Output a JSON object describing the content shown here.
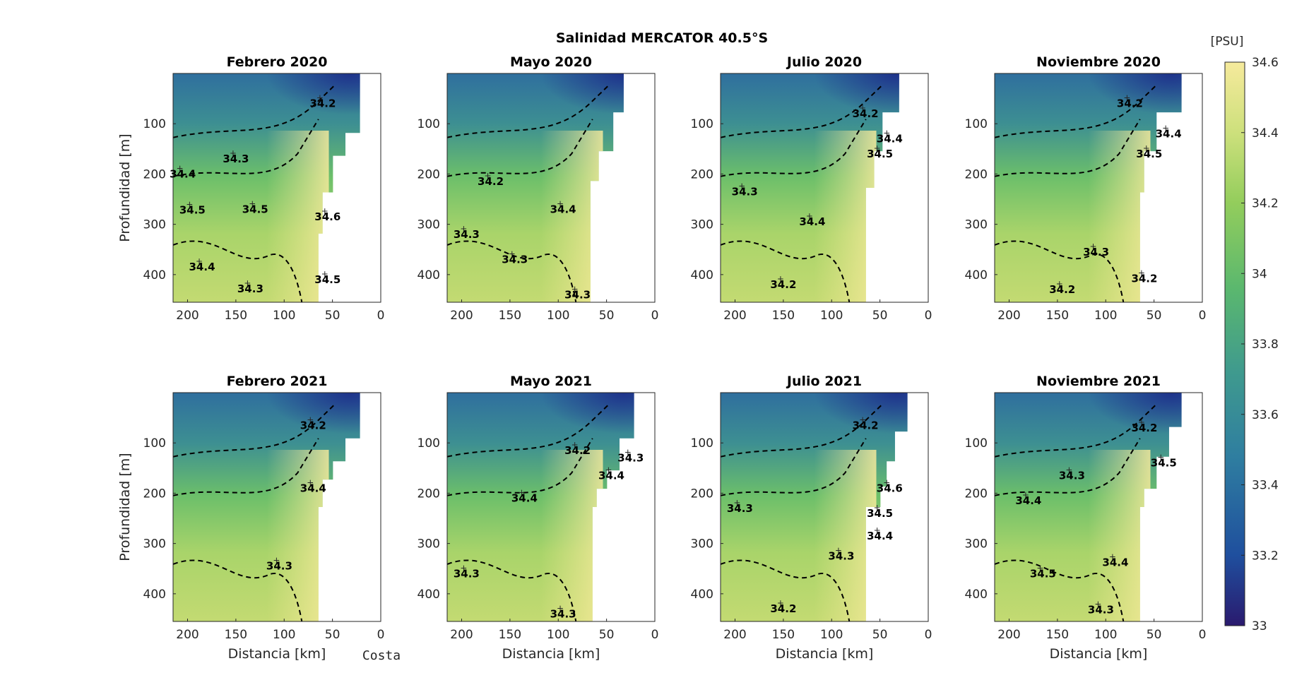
{
  "figure": {
    "suptitle": "Salinidad MERCATOR 40.5°S",
    "colorbar_unit": "[PSU]",
    "costa_label": "Costa"
  },
  "chart_data": {
    "type": "heatmap",
    "title": "Salinidad MERCATOR 40.5°S",
    "xlabel": "Distancia [km]",
    "ylabel": "Profundidad [m]",
    "xlim": [
      215,
      0
    ],
    "ylim": [
      455,
      0
    ],
    "x_ticks": [
      200,
      150,
      100,
      50,
      0
    ],
    "y_ticks": [
      100,
      200,
      300,
      400
    ],
    "colorbar": {
      "label": "[PSU]",
      "range": [
        33,
        34.6
      ],
      "ticks": [
        33,
        33.2,
        33.4,
        33.6,
        33.8,
        34,
        34.2,
        34.4,
        34.6
      ],
      "colors": [
        "#2a1a6e",
        "#1f4f9e",
        "#2f7ea0",
        "#3f9a8e",
        "#5bb86e",
        "#93cd5c",
        "#cde07c",
        "#f6ea9c"
      ]
    },
    "contour_style": "dashed black",
    "panels": [
      {
        "title": "Febrero 2020",
        "contour_labels": [
          {
            "text": "34.2",
            "x": 60,
            "y": 60
          },
          {
            "text": "34.3",
            "x": 150,
            "y": 170
          },
          {
            "text": "34.4",
            "x": 205,
            "y": 200
          },
          {
            "text": "34.5",
            "x": 195,
            "y": 272
          },
          {
            "text": "34.5",
            "x": 130,
            "y": 270
          },
          {
            "text": "34.6",
            "x": 55,
            "y": 285
          },
          {
            "text": "34.4",
            "x": 185,
            "y": 385
          },
          {
            "text": "34.3",
            "x": 135,
            "y": 428
          },
          {
            "text": "34.5",
            "x": 55,
            "y": 410
          }
        ]
      },
      {
        "title": "Mayo 2020",
        "contour_labels": [
          {
            "text": "34.2",
            "x": 170,
            "y": 215
          },
          {
            "text": "34.4",
            "x": 95,
            "y": 270
          },
          {
            "text": "34.3",
            "x": 195,
            "y": 320
          },
          {
            "text": "34.3",
            "x": 145,
            "y": 370
          },
          {
            "text": "34.3",
            "x": 80,
            "y": 440
          }
        ]
      },
      {
        "title": "Julio 2020",
        "contour_labels": [
          {
            "text": "34.2",
            "x": 65,
            "y": 80
          },
          {
            "text": "34.4",
            "x": 40,
            "y": 130
          },
          {
            "text": "34.5",
            "x": 50,
            "y": 160
          },
          {
            "text": "34.3",
            "x": 190,
            "y": 235
          },
          {
            "text": "34.4",
            "x": 120,
            "y": 295
          },
          {
            "text": "34.2",
            "x": 150,
            "y": 420
          }
        ]
      },
      {
        "title": "Noviembre 2020",
        "contour_labels": [
          {
            "text": "34.2",
            "x": 75,
            "y": 60
          },
          {
            "text": "34.4",
            "x": 35,
            "y": 120
          },
          {
            "text": "34.5",
            "x": 55,
            "y": 160
          },
          {
            "text": "34.3",
            "x": 110,
            "y": 355
          },
          {
            "text": "34.2",
            "x": 60,
            "y": 408
          },
          {
            "text": "34.2",
            "x": 145,
            "y": 430
          }
        ]
      },
      {
        "title": "Febrero 2021",
        "contour_labels": [
          {
            "text": "34.2",
            "x": 70,
            "y": 65
          },
          {
            "text": "34.4",
            "x": 70,
            "y": 190
          },
          {
            "text": "34.3",
            "x": 105,
            "y": 345
          }
        ]
      },
      {
        "title": "Mayo 2021",
        "contour_labels": [
          {
            "text": "34.2",
            "x": 80,
            "y": 115
          },
          {
            "text": "34.3",
            "x": 25,
            "y": 130
          },
          {
            "text": "34.4",
            "x": 45,
            "y": 165
          },
          {
            "text": "34.4",
            "x": 135,
            "y": 210
          },
          {
            "text": "34.3",
            "x": 195,
            "y": 360
          },
          {
            "text": "34.3",
            "x": 95,
            "y": 440
          }
        ]
      },
      {
        "title": "Julio 2021",
        "contour_labels": [
          {
            "text": "34.2",
            "x": 65,
            "y": 65
          },
          {
            "text": "34.6",
            "x": 40,
            "y": 190
          },
          {
            "text": "34.3",
            "x": 195,
            "y": 230
          },
          {
            "text": "34.5",
            "x": 50,
            "y": 240
          },
          {
            "text": "34.4",
            "x": 50,
            "y": 285
          },
          {
            "text": "34.3",
            "x": 90,
            "y": 325
          },
          {
            "text": "34.2",
            "x": 150,
            "y": 430
          }
        ]
      },
      {
        "title": "Noviembre 2021",
        "contour_labels": [
          {
            "text": "34.2",
            "x": 60,
            "y": 70
          },
          {
            "text": "34.5",
            "x": 40,
            "y": 140
          },
          {
            "text": "34.3",
            "x": 135,
            "y": 165
          },
          {
            "text": "34.4",
            "x": 180,
            "y": 215
          },
          {
            "text": "34.5",
            "x": 165,
            "y": 360
          },
          {
            "text": "34.4",
            "x": 90,
            "y": 338
          },
          {
            "text": "34.3",
            "x": 105,
            "y": 432
          }
        ]
      }
    ]
  }
}
